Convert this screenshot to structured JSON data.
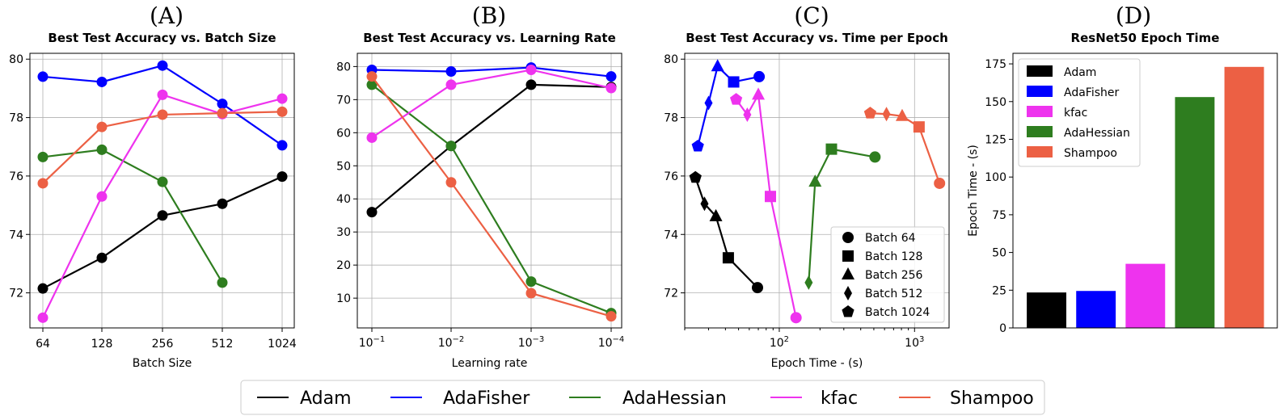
{
  "panels": [
    "(A)",
    "(B)",
    "(C)",
    "(D)"
  ],
  "colors": {
    "Adam": "#000000",
    "AdaFisher": "#0000ff",
    "AdaHessian": "#2e7d1f",
    "kfac": "#ee33ee",
    "Shampoo": "#ec6044"
  },
  "legend": {
    "items": [
      "Adam",
      "AdaFisher",
      "AdaHessian",
      "kfac",
      "Shampoo"
    ]
  },
  "chart_data": [
    {
      "type": "line",
      "title": "Best Test Accuracy vs. Batch Size",
      "xlabel": "Batch Size",
      "ylabel": "",
      "categories": [
        "64",
        "128",
        "256",
        "512",
        "1024"
      ],
      "ylim": [
        70.8,
        80.2
      ],
      "yticks": [
        72,
        74,
        76,
        78,
        80
      ],
      "grid": true,
      "series": [
        {
          "name": "Adam",
          "values": [
            72.15,
            73.2,
            74.65,
            75.05,
            75.98
          ]
        },
        {
          "name": "AdaFisher",
          "values": [
            79.4,
            79.22,
            79.78,
            78.47,
            77.05
          ]
        },
        {
          "name": "AdaHessian",
          "values": [
            76.65,
            76.9,
            75.8,
            72.35,
            null
          ]
        },
        {
          "name": "kfac",
          "values": [
            71.15,
            75.3,
            78.78,
            78.12,
            78.65
          ]
        },
        {
          "name": "Shampoo",
          "values": [
            75.75,
            77.68,
            78.1,
            78.15,
            78.2
          ]
        }
      ]
    },
    {
      "type": "line",
      "title": "Best Test Accuracy vs. Learning Rate",
      "xlabel": "Learning rate",
      "ylabel": "",
      "categories": [
        "10^-1",
        "10^-2",
        "10^-3",
        "10^-4"
      ],
      "ylim": [
        1,
        84
      ],
      "yticks": [
        10,
        20,
        30,
        40,
        50,
        60,
        70,
        80
      ],
      "grid": true,
      "series": [
        {
          "name": "Adam",
          "values": [
            36,
            56,
            74.5,
            73.8
          ]
        },
        {
          "name": "AdaFisher",
          "values": [
            79,
            78.5,
            79.7,
            77
          ]
        },
        {
          "name": "AdaHessian",
          "values": [
            74.5,
            56,
            15,
            5.5
          ]
        },
        {
          "name": "kfac",
          "values": [
            58.5,
            74.5,
            79,
            73.5
          ]
        },
        {
          "name": "Shampoo",
          "values": [
            77,
            45,
            11.5,
            4.5
          ]
        }
      ]
    },
    {
      "type": "scatter",
      "title": "Best Test Accuracy vs. Time per Epoch",
      "xlabel": "Epoch Time - (s)",
      "ylabel": "",
      "xscale": "log",
      "xlim": [
        20,
        1800
      ],
      "ylim": [
        70.8,
        80.2
      ],
      "xticks": [
        100,
        1000
      ],
      "xticklabels": [
        "10^2",
        "10^3"
      ],
      "yticks": [
        72,
        74,
        76,
        78,
        80
      ],
      "grid": true,
      "marker_legend": [
        "Batch 64",
        "Batch 128",
        "Batch 256",
        "Batch 512",
        "Batch 1024"
      ],
      "series": [
        {
          "name": "Adam",
          "points": [
            {
              "batch": "Batch 1024",
              "x": 24,
              "y": 75.95
            },
            {
              "batch": "Batch 512",
              "x": 28,
              "y": 75.05
            },
            {
              "batch": "Batch 256",
              "x": 34,
              "y": 74.62
            },
            {
              "batch": "Batch 128",
              "x": 42,
              "y": 73.2
            },
            {
              "batch": "Batch 64",
              "x": 69,
              "y": 72.18
            }
          ]
        },
        {
          "name": "AdaFisher",
          "points": [
            {
              "batch": "Batch 1024",
              "x": 25,
              "y": 77.02
            },
            {
              "batch": "Batch 512",
              "x": 30,
              "y": 78.5
            },
            {
              "batch": "Batch 256",
              "x": 35,
              "y": 79.75
            },
            {
              "batch": "Batch 128",
              "x": 46,
              "y": 79.22
            },
            {
              "batch": "Batch 64",
              "x": 71,
              "y": 79.4
            }
          ]
        },
        {
          "name": "AdaHessian",
          "points": [
            {
              "batch": "Batch 512",
              "x": 165,
              "y": 72.35
            },
            {
              "batch": "Batch 256",
              "x": 184,
              "y": 75.8
            },
            {
              "batch": "Batch 128",
              "x": 243,
              "y": 76.92
            },
            {
              "batch": "Batch 64",
              "x": 510,
              "y": 76.65
            }
          ]
        },
        {
          "name": "kfac",
          "points": [
            {
              "batch": "Batch 1024",
              "x": 48,
              "y": 78.62
            },
            {
              "batch": "Batch 512",
              "x": 58,
              "y": 78.1
            },
            {
              "batch": "Batch 256",
              "x": 70,
              "y": 78.78
            },
            {
              "batch": "Batch 128",
              "x": 86,
              "y": 75.3
            },
            {
              "batch": "Batch 64",
              "x": 133,
              "y": 71.15
            }
          ]
        },
        {
          "name": "Shampoo",
          "points": [
            {
              "batch": "Batch 1024",
              "x": 470,
              "y": 78.15
            },
            {
              "batch": "Batch 512",
              "x": 620,
              "y": 78.12
            },
            {
              "batch": "Batch 256",
              "x": 810,
              "y": 78.05
            },
            {
              "batch": "Batch 128",
              "x": 1080,
              "y": 77.68
            },
            {
              "batch": "Batch 64",
              "x": 1530,
              "y": 75.75
            }
          ]
        }
      ]
    },
    {
      "type": "bar",
      "title": "ResNet50 Epoch Time",
      "xlabel": "",
      "ylabel": "Epoch Time - (s)",
      "categories": [
        "Adam",
        "AdaFisher",
        "kfac",
        "AdaHessian",
        "Shampoo"
      ],
      "values": [
        23.5,
        24.5,
        42.5,
        153,
        173
      ],
      "ylim": [
        0,
        182
      ],
      "yticks": [
        0,
        25,
        50,
        75,
        100,
        125,
        150,
        175
      ],
      "legend": "top-left"
    }
  ]
}
